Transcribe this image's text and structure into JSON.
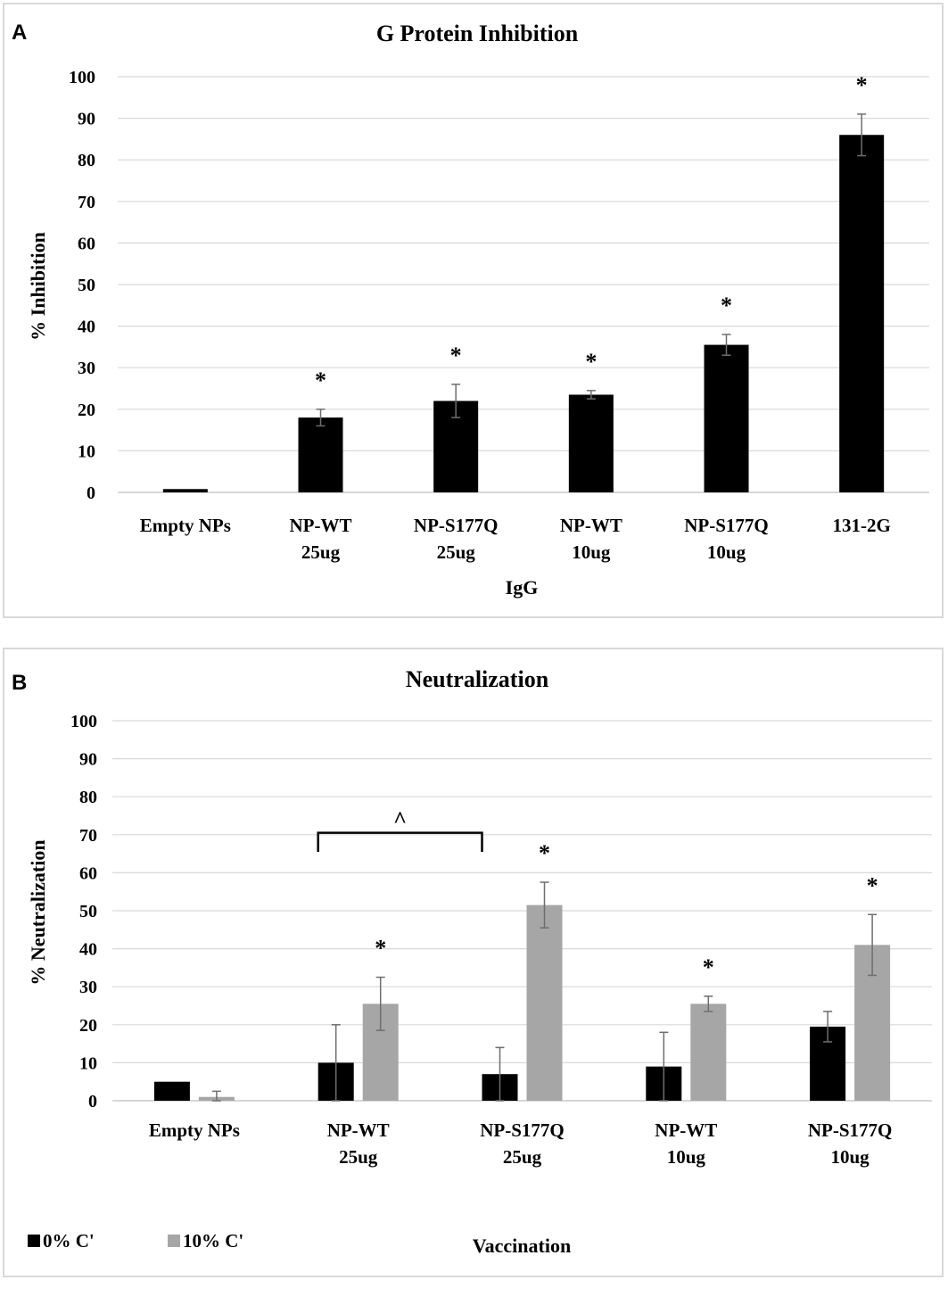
{
  "chart_data": [
    {
      "panel": "A",
      "type": "bar",
      "title": "G Protein Inhibition",
      "xlabel": "IgG",
      "ylabel": "% Inhibition",
      "ylim": [
        0,
        100
      ],
      "yticks": [
        0,
        10,
        20,
        30,
        40,
        50,
        60,
        70,
        80,
        90,
        100
      ],
      "categories": [
        [
          "Empty NPs"
        ],
        [
          "NP-WT",
          "25ug"
        ],
        [
          "NP-S177Q",
          "25ug"
        ],
        [
          "NP-WT",
          "10ug"
        ],
        [
          "NP-S177Q",
          "10ug"
        ],
        [
          "131-2G"
        ]
      ],
      "series": [
        {
          "name": "IgG",
          "color": "#000000",
          "values": [
            0.8,
            18,
            22,
            23.5,
            35.5,
            86
          ],
          "errors": [
            0,
            2,
            4,
            1,
            2.5,
            5
          ],
          "significance": [
            "",
            "*",
            "*",
            "*",
            "*",
            "*"
          ]
        }
      ]
    },
    {
      "panel": "B",
      "type": "bar",
      "title": "Neutralization",
      "xlabel": "Vaccination",
      "ylabel": "% Neutralization",
      "ylim": [
        0,
        100
      ],
      "yticks": [
        0,
        10,
        20,
        30,
        40,
        50,
        60,
        70,
        80,
        90,
        100
      ],
      "categories": [
        [
          "Empty NPs"
        ],
        [
          "NP-WT",
          "25ug"
        ],
        [
          "NP-S177Q",
          "25ug"
        ],
        [
          "NP-WT",
          "10ug"
        ],
        [
          "NP-S177Q",
          "10ug"
        ]
      ],
      "series": [
        {
          "name": "0% C'",
          "color": "#000000",
          "values": [
            5,
            10,
            7,
            9,
            19.5
          ],
          "errors": [
            0,
            10,
            7,
            9,
            4
          ],
          "significance": [
            "",
            "",
            "",
            "",
            ""
          ]
        },
        {
          "name": "10% C'",
          "color": "#a6a6a6",
          "values": [
            1,
            25.5,
            51.5,
            25.5,
            41
          ],
          "errors": [
            1.5,
            7,
            6,
            2,
            8
          ],
          "significance": [
            "",
            "*",
            "*",
            "*",
            "*"
          ]
        }
      ],
      "bracket": {
        "from_category": 1,
        "to_category": 2,
        "symbol": "^"
      },
      "legend": "bottom-left"
    }
  ],
  "panel_labels": {
    "a": "A",
    "b": "B"
  }
}
